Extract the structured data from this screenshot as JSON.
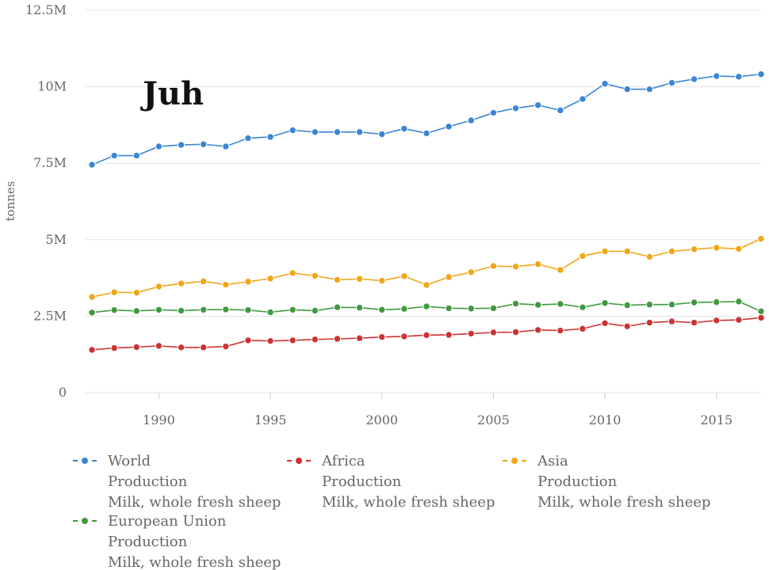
{
  "overlay_label": "Juh",
  "colors": {
    "world": "#3a86d4",
    "africa": "#cc3333",
    "asia": "#f2a516",
    "eu": "#3f9a3f",
    "grid": "#e3e3e3",
    "text": "#666666"
  },
  "chart_data": {
    "type": "line",
    "title": "",
    "xlabel": "",
    "ylabel": "tonnes",
    "xlim": [
      1987,
      2017
    ],
    "ylim": [
      0,
      12500000
    ],
    "yticks": [
      {
        "value": 0,
        "label": "0"
      },
      {
        "value": 2500000,
        "label": "2.5M"
      },
      {
        "value": 5000000,
        "label": "5M"
      },
      {
        "value": 7500000,
        "label": "7.5M"
      },
      {
        "value": 10000000,
        "label": "10M"
      },
      {
        "value": 12500000,
        "label": "12.5M"
      }
    ],
    "xticks": [
      1990,
      1995,
      2000,
      2005,
      2010,
      2015
    ],
    "grid": true,
    "legend_position": "bottom",
    "x": [
      1987,
      1988,
      1989,
      1990,
      1991,
      1992,
      1993,
      1994,
      1995,
      1996,
      1997,
      1998,
      1999,
      2000,
      2001,
      2002,
      2003,
      2004,
      2005,
      2006,
      2007,
      2008,
      2009,
      2010,
      2011,
      2012,
      2013,
      2014,
      2015,
      2016,
      2017
    ],
    "series": [
      {
        "key": "world",
        "legend": [
          "World",
          "Production",
          "Milk, whole fresh sheep"
        ],
        "values": [
          7450000,
          7750000,
          7750000,
          8050000,
          8100000,
          8120000,
          8050000,
          8320000,
          8360000,
          8580000,
          8520000,
          8520000,
          8520000,
          8450000,
          8630000,
          8480000,
          8700000,
          8900000,
          9150000,
          9300000,
          9400000,
          9230000,
          9600000,
          10100000,
          9920000,
          9920000,
          10130000,
          10250000,
          10350000,
          10330000,
          10410000
        ]
      },
      {
        "key": "africa",
        "legend": [
          "Africa",
          "Production",
          "Milk, whole fresh sheep"
        ],
        "values": [
          1400000,
          1460000,
          1490000,
          1530000,
          1480000,
          1480000,
          1510000,
          1710000,
          1690000,
          1710000,
          1740000,
          1760000,
          1780000,
          1820000,
          1840000,
          1880000,
          1890000,
          1930000,
          1970000,
          1980000,
          2050000,
          2030000,
          2090000,
          2270000,
          2170000,
          2290000,
          2330000,
          2290000,
          2360000,
          2380000,
          2450000
        ]
      },
      {
        "key": "asia",
        "legend": [
          "Asia",
          "Production",
          "Milk, whole fresh sheep"
        ],
        "values": [
          3130000,
          3280000,
          3270000,
          3470000,
          3570000,
          3640000,
          3530000,
          3630000,
          3730000,
          3910000,
          3820000,
          3690000,
          3720000,
          3660000,
          3810000,
          3520000,
          3780000,
          3940000,
          4140000,
          4120000,
          4200000,
          4010000,
          4470000,
          4620000,
          4620000,
          4440000,
          4620000,
          4690000,
          4740000,
          4700000,
          5030000
        ]
      },
      {
        "key": "eu",
        "legend": [
          "European Union",
          "Production",
          "Milk, whole fresh sheep"
        ],
        "values": [
          2620000,
          2700000,
          2670000,
          2710000,
          2680000,
          2710000,
          2720000,
          2700000,
          2630000,
          2710000,
          2680000,
          2790000,
          2780000,
          2710000,
          2740000,
          2820000,
          2760000,
          2750000,
          2760000,
          2910000,
          2870000,
          2900000,
          2790000,
          2930000,
          2860000,
          2880000,
          2880000,
          2950000,
          2960000,
          2980000,
          2660000
        ]
      }
    ]
  }
}
